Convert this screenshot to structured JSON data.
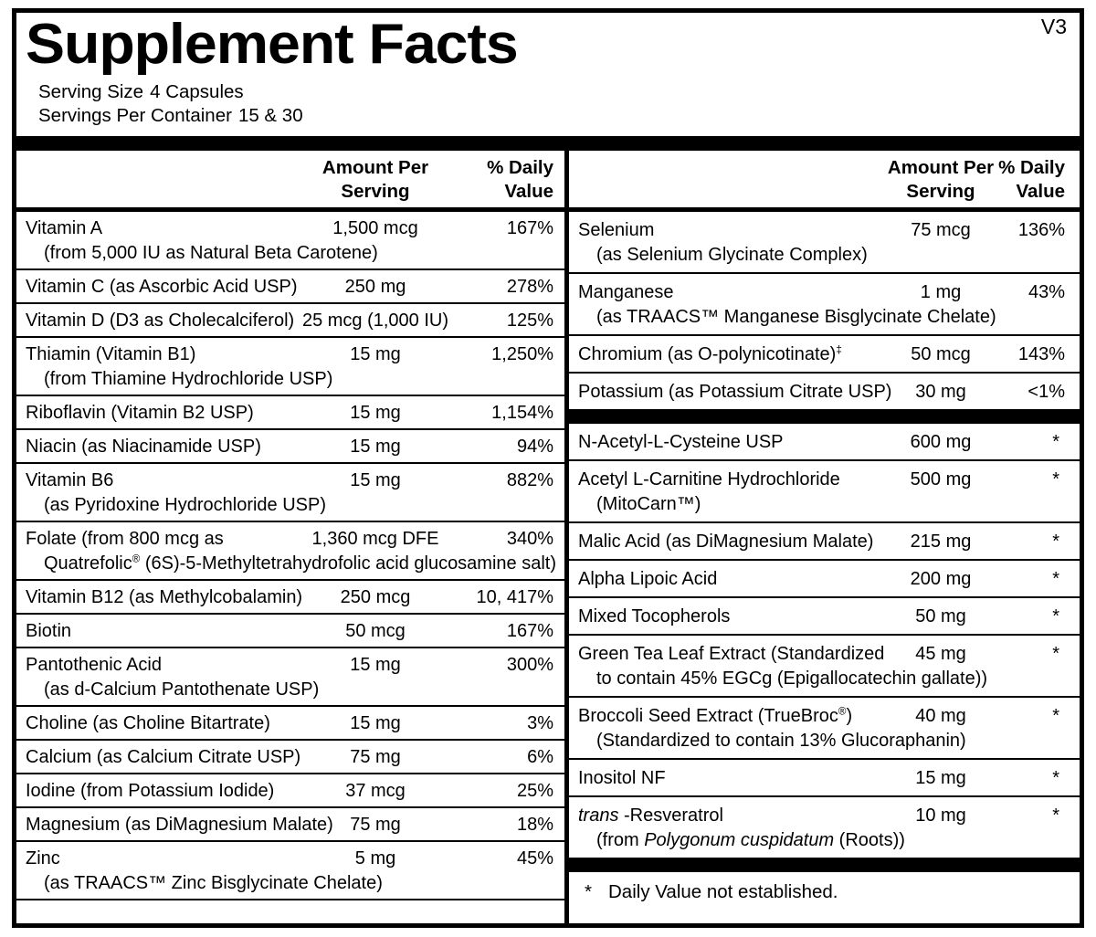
{
  "version_tag": "V3",
  "title": "Supplement Facts",
  "serving_info": {
    "size_label": "Serving Size",
    "size_value": "4 Capsules",
    "per_container_label": "Servings Per Container",
    "per_container_value": "15 & 30"
  },
  "table_headers": {
    "amount_line1": "Amount Per",
    "amount_line2": "Serving",
    "dv_line1": "% Daily",
    "dv_line2": "Value"
  },
  "left_column": {
    "rows": [
      {
        "name": "Vitamin A",
        "sub": "(from 5,000 IU as Natural Beta Carotene)",
        "amount": "1,500 mcg",
        "dv": "167%"
      },
      {
        "name": "Vitamin C (as Ascorbic Acid USP)",
        "amount": "250 mg",
        "dv": "278%"
      },
      {
        "name": "Vitamin D (D3 as Cholecalciferol)",
        "amount": "25 mcg (1,000 IU)",
        "dv": "125%"
      },
      {
        "name": "Thiamin (Vitamin B1)",
        "sub": "(from Thiamine Hydrochloride USP)",
        "amount": "15 mg",
        "dv": "1,250%"
      },
      {
        "name": "Riboflavin (Vitamin B2 USP)",
        "amount": "15 mg",
        "dv": "1,154%"
      },
      {
        "name": "Niacin (as Niacinamide USP)",
        "amount": "15 mg",
        "dv": "94%"
      },
      {
        "name": "Vitamin B6",
        "sub": "(as Pyridoxine Hydrochloride USP)",
        "amount": "15 mg",
        "dv": "882%"
      },
      {
        "name": "Folate (from 800 mcg as",
        "sub": "Quatrefolic® (6S)-5-Methyltetrahydrofolic acid glucosamine salt)",
        "amount": "1,360 mcg DFE",
        "dv": "340%"
      },
      {
        "name": "Vitamin B12 (as Methylcobalamin)",
        "amount": "250 mcg",
        "dv": "10, 417%"
      },
      {
        "name": "Biotin",
        "amount": "50 mcg",
        "dv": "167%"
      },
      {
        "name": "Pantothenic Acid",
        "sub": "(as d-Calcium Pantothenate USP)",
        "amount": "15 mg",
        "dv": "300%"
      },
      {
        "name": "Choline (as Choline Bitartrate)",
        "amount": "15 mg",
        "dv": "3%"
      },
      {
        "name": "Calcium (as Calcium Citrate USP)",
        "amount": "75 mg",
        "dv": "6%"
      },
      {
        "name": "Iodine (from Potassium Iodide)",
        "amount": "37 mcg",
        "dv": "25%"
      },
      {
        "name": "Magnesium (as DiMagnesium Malate)",
        "amount": "75 mg",
        "dv": "18%"
      },
      {
        "name": "Zinc",
        "sub": "(as TRAACS™ Zinc Bisglycinate Chelate)",
        "amount": "5 mg",
        "dv": "45%"
      }
    ]
  },
  "right_column": {
    "rows": [
      {
        "name": "Selenium",
        "sub": "(as Selenium Glycinate Complex)",
        "amount": "75 mcg",
        "dv": "136%"
      },
      {
        "name": "Manganese",
        "sub": "(as TRAACS™ Manganese Bisglycinate Chelate)",
        "amount": "1 mg",
        "dv": "43%"
      },
      {
        "name": "Chromium (as O-polynicotinate)‡",
        "amount": "50 mcg",
        "dv": "143%"
      },
      {
        "name": "Potassium (as Potassium Citrate USP)",
        "amount": "30 mg",
        "dv": "<1%",
        "no_border": true
      },
      {
        "type": "bar"
      },
      {
        "name": "N-Acetyl-L-Cysteine USP",
        "amount": "600 mg",
        "dv": "*"
      },
      {
        "name": "Acetyl L-Carnitine Hydrochloride",
        "sub": "(MitoCarn™)",
        "amount": "500 mg",
        "dv": "*"
      },
      {
        "name": "Malic Acid (as DiMagnesium Malate)",
        "amount": "215 mg",
        "dv": "*"
      },
      {
        "name": "Alpha Lipoic Acid",
        "amount": "200 mg",
        "dv": "*"
      },
      {
        "name": "Mixed Tocopherols",
        "amount": "50 mg",
        "dv": "*"
      },
      {
        "name": "Green Tea Leaf Extract (Standardized",
        "sub": "to contain 45% EGCg (Epigallocatechin gallate))",
        "amount": "45 mg",
        "dv": "*"
      },
      {
        "name": "Broccoli Seed Extract (TrueBroc®)",
        "sub": "(Standardized to contain 13% Glucoraphanin)",
        "amount": "40 mg",
        "dv": "*"
      },
      {
        "name": "Inositol NF",
        "amount": "15 mg",
        "dv": "*"
      },
      {
        "name": "*trans* -Resveratrol",
        "sub": "(from *Polygonum cuspidatum* (Roots))",
        "amount": "10 mg",
        "dv": "*",
        "no_border": true
      },
      {
        "type": "bar"
      }
    ],
    "footnote_symbol": "*",
    "footnote_text": "Daily Value not established."
  }
}
